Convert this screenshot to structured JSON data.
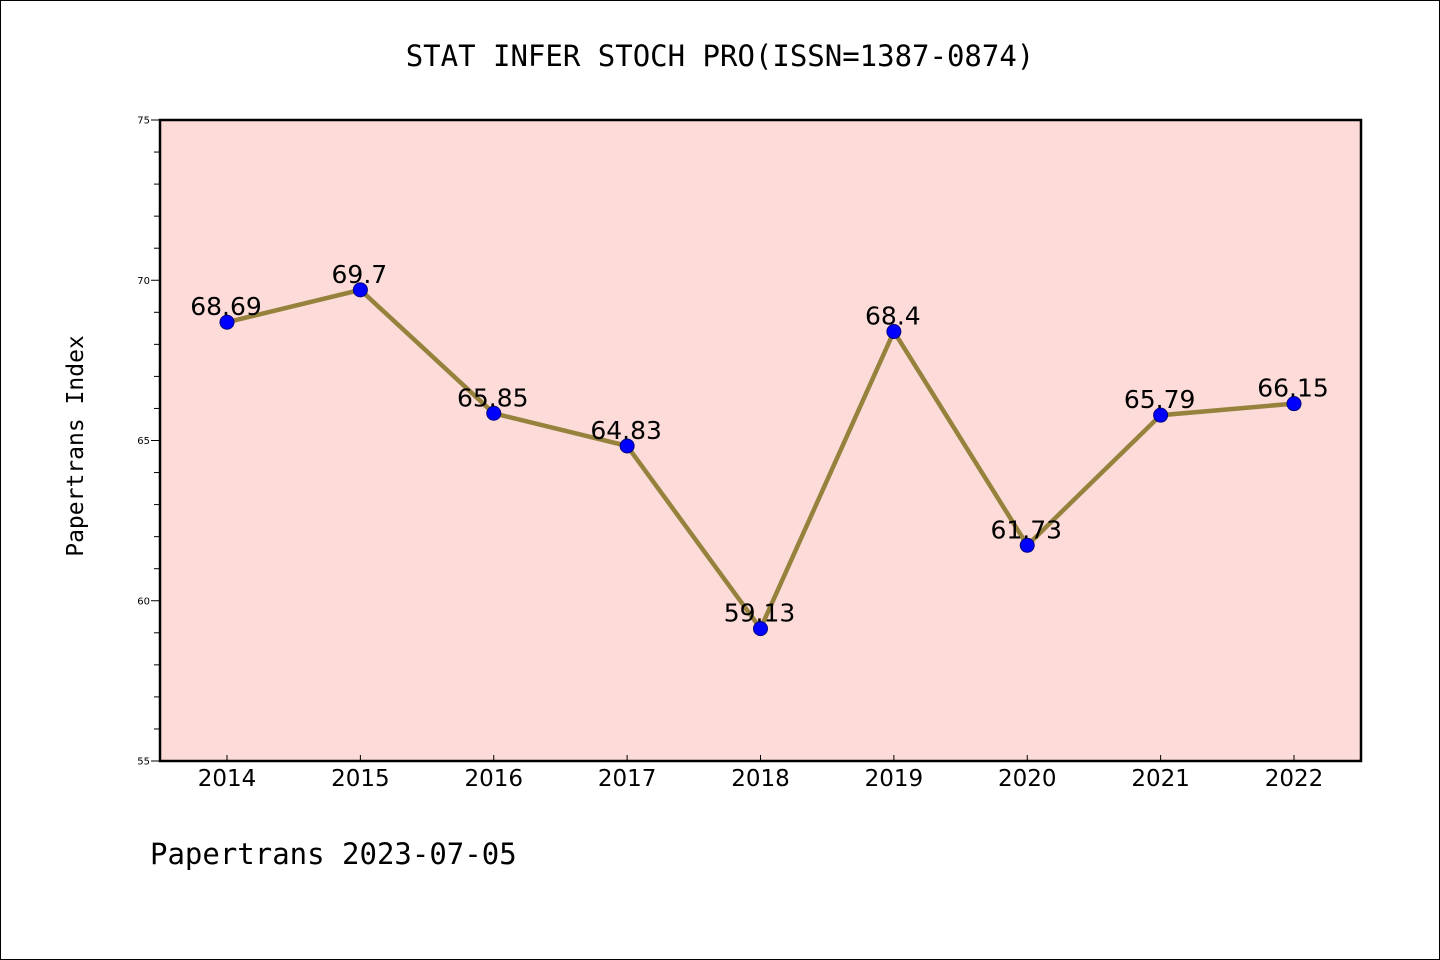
{
  "footer": "Papertrans 2023-07-05",
  "chart_data": {
    "type": "line",
    "title": "STAT INFER STOCH PRO(ISSN=1387-0874)",
    "xlabel": "",
    "ylabel": "Papertrans Index",
    "categories": [
      "2014",
      "2015",
      "2016",
      "2017",
      "2018",
      "2019",
      "2020",
      "2021",
      "2022"
    ],
    "values": [
      68.69,
      69.7,
      65.85,
      64.83,
      59.13,
      68.4,
      61.73,
      65.79,
      66.15
    ],
    "data_labels": [
      "68.69",
      "69.7",
      "65.85",
      "64.83",
      "59.13",
      "68.4",
      "61.73",
      "65.79",
      "66.15"
    ],
    "ylim": [
      55,
      75
    ],
    "yticks": [
      55,
      60,
      65,
      70,
      75
    ],
    "ytick_labels": [
      "55",
      "60",
      "65",
      "70",
      "75"
    ],
    "grid": false,
    "legend": "none",
    "colors": {
      "plot_background": "#fddbd8",
      "line": "#96823c",
      "marker": "#0000ff",
      "marker_edge": "#000080"
    }
  }
}
